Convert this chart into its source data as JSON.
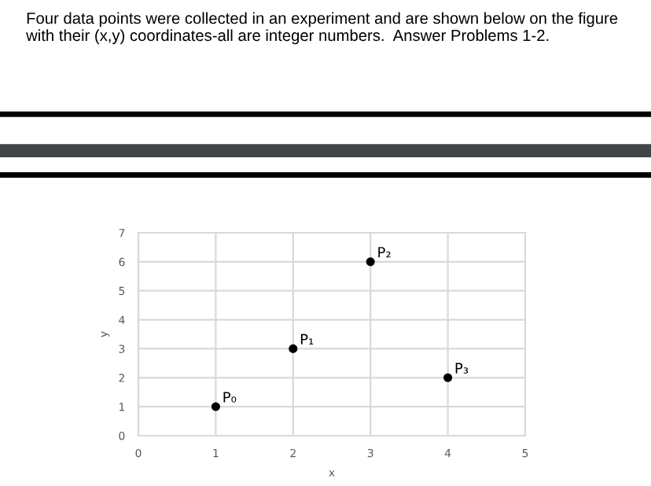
{
  "chart_data": {
    "type": "scatter",
    "title": "Four data points were collected in an experiment and are shown below on the figure with their (x,y) coordinates-all are integer numbers.  Answer Problems 1-2.",
    "xlabel": "x",
    "ylabel": "y",
    "x": [
      1,
      2,
      3,
      4
    ],
    "series": [
      {
        "color": "#000000",
        "values": [
          1,
          3,
          6,
          2
        ]
      }
    ],
    "annotations": [
      {
        "text": "P₀",
        "x": 1,
        "y": 1
      },
      {
        "text": "P₁",
        "x": 2,
        "y": 3
      },
      {
        "text": "P₂",
        "x": 3,
        "y": 6
      },
      {
        "text": "P₃",
        "x": 4,
        "y": 2
      }
    ],
    "xlim": [
      0,
      5
    ],
    "xticks": [
      0,
      1,
      2,
      3,
      4,
      5
    ],
    "ylim": [
      0,
      7
    ],
    "yticks": [
      0,
      1,
      2,
      3,
      4,
      5,
      6,
      7
    ],
    "grid": true,
    "marker": "circle",
    "legend": false
  }
}
